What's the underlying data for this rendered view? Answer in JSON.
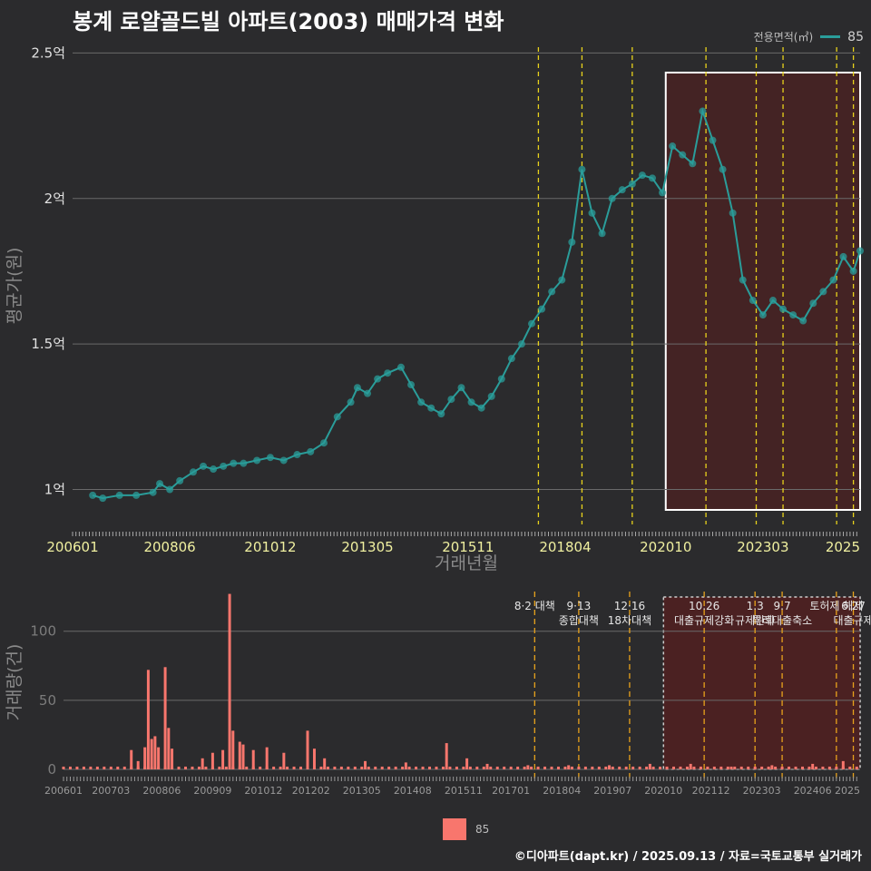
{
  "title": "봉계 로얄골드빌 아파트(2003) 매매가격 변화",
  "legend": {
    "title": "전용면적(㎡)",
    "series_label": "85",
    "color": "#2a9d9a"
  },
  "bottom_legend": {
    "label": "85",
    "color": "#f8766d"
  },
  "credit": "©디아파트(dapt.kr) / 2025.09.13 / 자료=국토교통부 실거래가",
  "colors": {
    "background": "#2b2b2d",
    "price": "#2a9d9a",
    "volume": "#f8766d",
    "policy_line": "#e8d21c",
    "highlight": "#5a1e1e"
  },
  "chart_data": [
    {
      "type": "line",
      "xlabel": "거래년월",
      "ylabel": "평균가(원)",
      "x_ticks": [
        "200601",
        "200806",
        "201012",
        "201305",
        "201511",
        "201804",
        "202010",
        "202303",
        "2025"
      ],
      "y_ticks": [
        "1억",
        "1.5억",
        "2억",
        "2.5억"
      ],
      "ylim": [
        0.88,
        2.52
      ],
      "xlim": [
        "2006-01",
        "2025-08"
      ],
      "policy_dates": [
        "2017-08",
        "2018-09",
        "2019-12",
        "2021-10",
        "2023-01",
        "2023-09",
        "2025-01",
        "2025-06"
      ],
      "highlight_range": [
        "2020-10",
        "2025-08"
      ],
      "series": [
        {
          "name": "85",
          "points": [
            [
              "2006-07",
              0.98
            ],
            [
              "2006-10",
              0.97
            ],
            [
              "2007-03",
              0.98
            ],
            [
              "2007-08",
              0.98
            ],
            [
              "2008-01",
              0.99
            ],
            [
              "2008-03",
              1.02
            ],
            [
              "2008-06",
              1.0
            ],
            [
              "2008-09",
              1.03
            ],
            [
              "2009-01",
              1.06
            ],
            [
              "2009-04",
              1.08
            ],
            [
              "2009-07",
              1.07
            ],
            [
              "2009-10",
              1.08
            ],
            [
              "2010-01",
              1.09
            ],
            [
              "2010-04",
              1.09
            ],
            [
              "2010-08",
              1.1
            ],
            [
              "2010-12",
              1.11
            ],
            [
              "2011-04",
              1.1
            ],
            [
              "2011-08",
              1.12
            ],
            [
              "2011-12",
              1.13
            ],
            [
              "2012-04",
              1.16
            ],
            [
              "2012-08",
              1.25
            ],
            [
              "2012-12",
              1.3
            ],
            [
              "2013-02",
              1.35
            ],
            [
              "2013-05",
              1.33
            ],
            [
              "2013-08",
              1.38
            ],
            [
              "2013-11",
              1.4
            ],
            [
              "2014-03",
              1.42
            ],
            [
              "2014-06",
              1.36
            ],
            [
              "2014-09",
              1.3
            ],
            [
              "2014-12",
              1.28
            ],
            [
              "2015-03",
              1.26
            ],
            [
              "2015-06",
              1.31
            ],
            [
              "2015-09",
              1.35
            ],
            [
              "2015-12",
              1.3
            ],
            [
              "2016-03",
              1.28
            ],
            [
              "2016-06",
              1.32
            ],
            [
              "2016-09",
              1.38
            ],
            [
              "2016-12",
              1.45
            ],
            [
              "2017-03",
              1.5
            ],
            [
              "2017-06",
              1.57
            ],
            [
              "2017-09",
              1.62
            ],
            [
              "2017-12",
              1.68
            ],
            [
              "2018-03",
              1.72
            ],
            [
              "2018-06",
              1.85
            ],
            [
              "2018-09",
              2.1
            ],
            [
              "2018-12",
              1.95
            ],
            [
              "2019-03",
              1.88
            ],
            [
              "2019-06",
              2.0
            ],
            [
              "2019-09",
              2.03
            ],
            [
              "2019-12",
              2.05
            ],
            [
              "2020-03",
              2.08
            ],
            [
              "2020-06",
              2.07
            ],
            [
              "2020-09",
              2.02
            ],
            [
              "2020-12",
              2.18
            ],
            [
              "2021-03",
              2.15
            ],
            [
              "2021-06",
              2.12
            ],
            [
              "2021-09",
              2.3
            ],
            [
              "2021-12",
              2.2
            ],
            [
              "2022-03",
              2.1
            ],
            [
              "2022-06",
              1.95
            ],
            [
              "2022-09",
              1.72
            ],
            [
              "2022-12",
              1.65
            ],
            [
              "2023-03",
              1.6
            ],
            [
              "2023-06",
              1.65
            ],
            [
              "2023-09",
              1.62
            ],
            [
              "2023-12",
              1.6
            ],
            [
              "2024-03",
              1.58
            ],
            [
              "2024-06",
              1.64
            ],
            [
              "2024-09",
              1.68
            ],
            [
              "2024-12",
              1.72
            ],
            [
              "2025-03",
              1.8
            ],
            [
              "2025-06",
              1.75
            ],
            [
              "2025-08",
              1.82
            ]
          ]
        }
      ]
    },
    {
      "type": "bar",
      "xlabel": "",
      "ylabel": "거래량(건)",
      "x_ticks": [
        "200601",
        "200703",
        "200806",
        "200909",
        "201012",
        "201202",
        "201305",
        "201408",
        "201511",
        "201701",
        "201804",
        "201907",
        "202010",
        "202112",
        "202303",
        "202406",
        "2025"
      ],
      "y_ticks": [
        "0",
        "50",
        "100"
      ],
      "ylim": [
        0,
        130
      ],
      "policy_labels": [
        {
          "date": "2017-08",
          "lines": [
            "8·2 대책"
          ]
        },
        {
          "date": "2018-09",
          "lines": [
            "9·13",
            "종합대책"
          ]
        },
        {
          "date": "2019-12",
          "lines": [
            "12·16",
            "18차대책"
          ]
        },
        {
          "date": "2021-10",
          "lines": [
            "10.26",
            "대출규제강화"
          ]
        },
        {
          "date": "2023-01",
          "lines": [
            "1.3",
            "규제완화"
          ]
        },
        {
          "date": "2023-09",
          "lines": [
            "9.7",
            "특례대출축소"
          ]
        },
        {
          "date": "2025-01",
          "lines": [
            "토허제 해제"
          ]
        },
        {
          "date": "2025-06",
          "lines": [
            "6.27",
            "대출규제"
          ]
        }
      ],
      "series": [
        {
          "name": "85",
          "bars": [
            [
              "2008-02",
              72
            ],
            [
              "2008-03",
              22
            ],
            [
              "2008-04",
              24
            ],
            [
              "2008-05",
              16
            ],
            [
              "2008-07",
              74
            ],
            [
              "2008-08",
              30
            ],
            [
              "2008-09",
              15
            ],
            [
              "2007-09",
              14
            ],
            [
              "2007-11",
              6
            ],
            [
              "2008-01",
              16
            ],
            [
              "2009-06",
              8
            ],
            [
              "2009-09",
              12
            ],
            [
              "2009-12",
              14
            ],
            [
              "2010-02",
              127
            ],
            [
              "2010-03",
              28
            ],
            [
              "2010-05",
              20
            ],
            [
              "2010-06",
              18
            ],
            [
              "2010-09",
              14
            ],
            [
              "2011-01",
              16
            ],
            [
              "2011-06",
              12
            ],
            [
              "2012-01",
              28
            ],
            [
              "2012-03",
              15
            ],
            [
              "2012-06",
              8
            ],
            [
              "2013-06",
              6
            ],
            [
              "2014-06",
              5
            ],
            [
              "2015-06",
              19
            ],
            [
              "2015-12",
              8
            ],
            [
              "2016-06",
              4
            ],
            [
              "2017-06",
              3
            ],
            [
              "2018-06",
              3
            ],
            [
              "2019-06",
              3
            ],
            [
              "2020-06",
              4
            ],
            [
              "2021-06",
              4
            ],
            [
              "2022-06",
              2
            ],
            [
              "2023-06",
              3
            ],
            [
              "2024-06",
              4
            ],
            [
              "2025-03",
              6
            ]
          ]
        }
      ]
    }
  ]
}
